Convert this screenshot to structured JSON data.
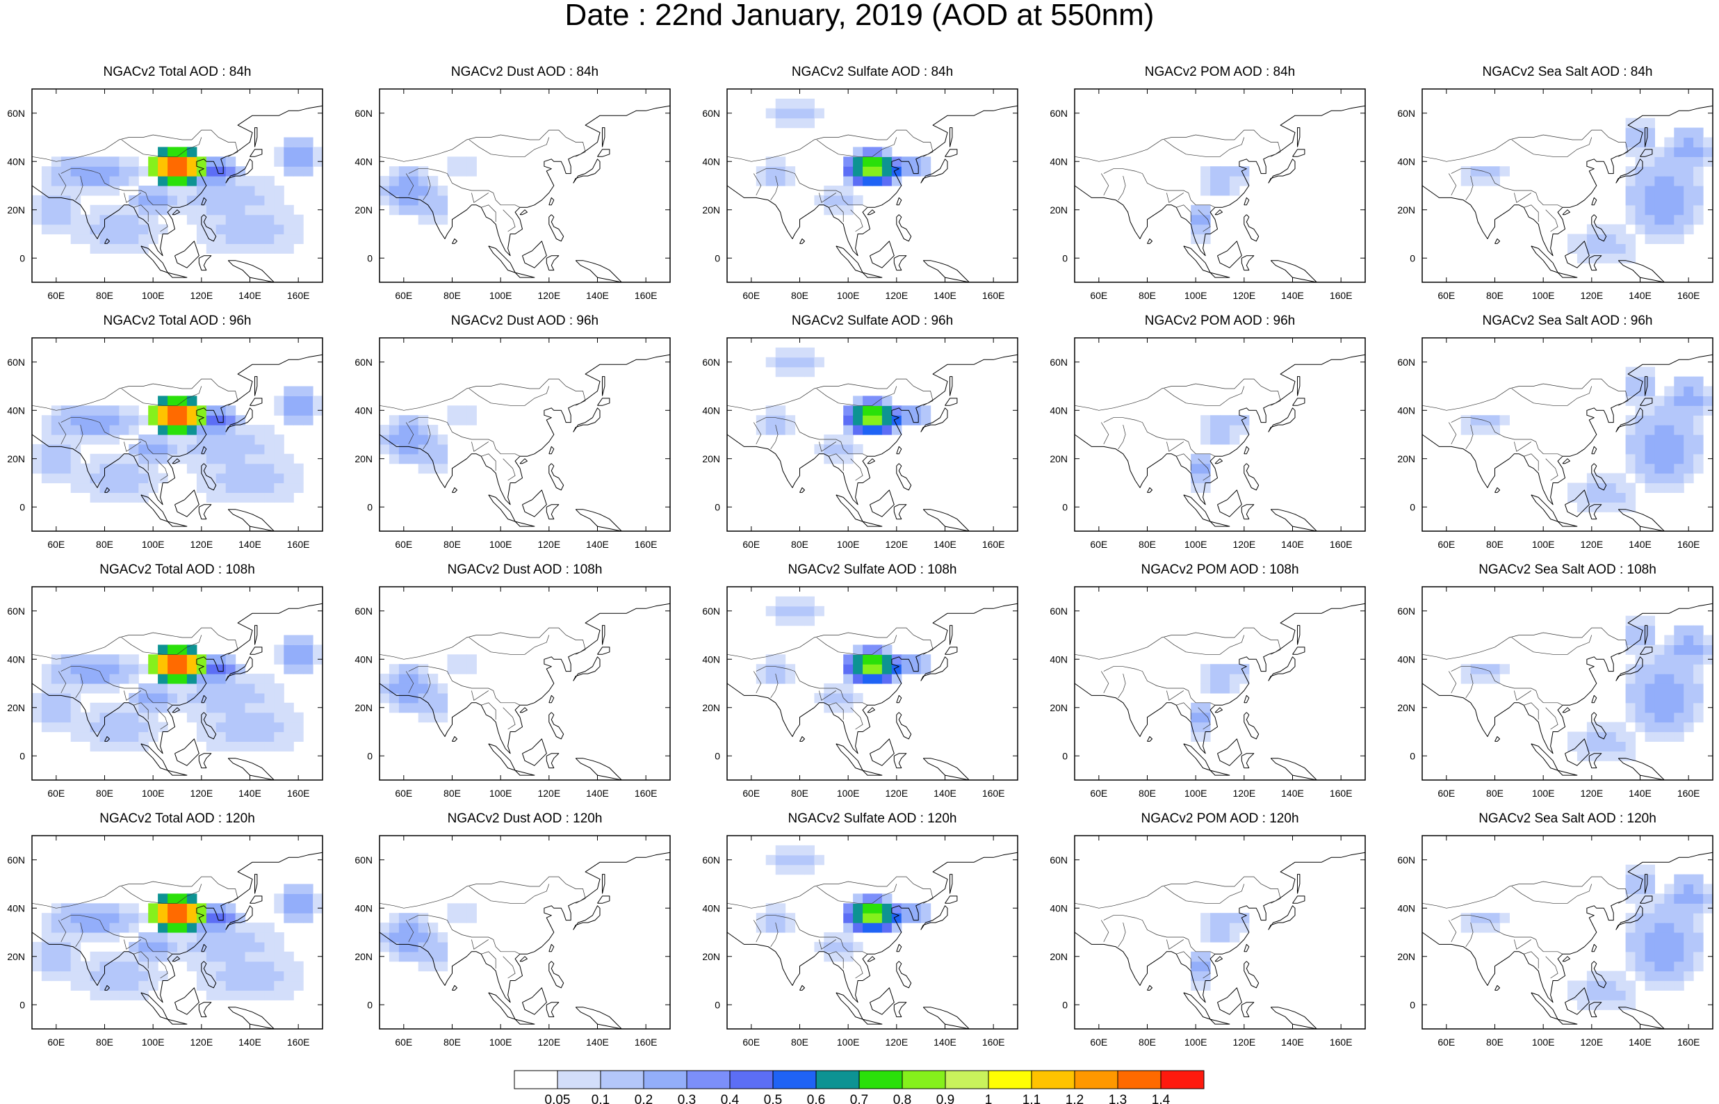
{
  "title": "Date : 22nd January, 2019 (AOD at 550nm)",
  "chart_data": {
    "type": "heatmap",
    "map_region": {
      "lon_range": [
        50,
        170
      ],
      "lat_range": [
        -10,
        70
      ]
    },
    "x_ticks": [
      "60E",
      "80E",
      "100E",
      "120E",
      "140E",
      "160E"
    ],
    "x_tick_values": [
      60,
      80,
      100,
      120,
      140,
      160
    ],
    "y_ticks": [
      "60N",
      "40N",
      "20N",
      "0"
    ],
    "y_tick_values": [
      60,
      40,
      20,
      0
    ],
    "colorbar": {
      "labels": [
        "0.05",
        "0.1",
        "0.2",
        "0.3",
        "0.4",
        "0.5",
        "0.6",
        "0.7",
        "0.8",
        "0.9",
        "1",
        "1.1",
        "1.2",
        "1.3",
        "1.4"
      ],
      "colors": [
        "#ffffff",
        "#d3defa",
        "#b4c7fa",
        "#93aefa",
        "#7c8ffa",
        "#5c6ef5",
        "#1f63f5",
        "#0d9393",
        "#2ae00a",
        "#85f01c",
        "#c9f25c",
        "#fffe03",
        "#ffc300",
        "#ff9800",
        "#ff6a00",
        "#fe1a0e"
      ]
    },
    "panels": [
      [
        {
          "title": "NGACv2 Total AOD : 84h",
          "species": "total"
        },
        {
          "title": "NGACv2 Dust AOD : 84h",
          "species": "dust"
        },
        {
          "title": "NGACv2 Sulfate AOD : 84h",
          "species": "sulfate"
        },
        {
          "title": "NGACv2 POM AOD : 84h",
          "species": "pom"
        },
        {
          "title": "NGACv2 Sea Salt AOD : 84h",
          "species": "seasalt"
        }
      ],
      [
        {
          "title": "NGACv2 Total AOD : 96h",
          "species": "total"
        },
        {
          "title": "NGACv2 Dust AOD : 96h",
          "species": "dust"
        },
        {
          "title": "NGACv2 Sulfate AOD : 96h",
          "species": "sulfate"
        },
        {
          "title": "NGACv2 POM AOD : 96h",
          "species": "pom"
        },
        {
          "title": "NGACv2 Sea Salt AOD : 96h",
          "species": "seasalt"
        }
      ],
      [
        {
          "title": "NGACv2 Total AOD : 108h",
          "species": "total"
        },
        {
          "title": "NGACv2 Dust AOD : 108h",
          "species": "dust"
        },
        {
          "title": "NGACv2 Sulfate AOD : 108h",
          "species": "sulfate"
        },
        {
          "title": "NGACv2 POM AOD : 108h",
          "species": "pom"
        },
        {
          "title": "NGACv2 Sea Salt AOD : 108h",
          "species": "seasalt"
        }
      ],
      [
        {
          "title": "NGACv2 Total AOD : 120h",
          "species": "total"
        },
        {
          "title": "NGACv2 Dust AOD : 120h",
          "species": "dust"
        },
        {
          "title": "NGACv2 Sulfate AOD : 120h",
          "species": "sulfate"
        },
        {
          "title": "NGACv2 POM AOD : 120h",
          "species": "pom"
        },
        {
          "title": "NGACv2 Sea Salt  AOD : 120h",
          "species": "seasalt"
        }
      ]
    ]
  }
}
